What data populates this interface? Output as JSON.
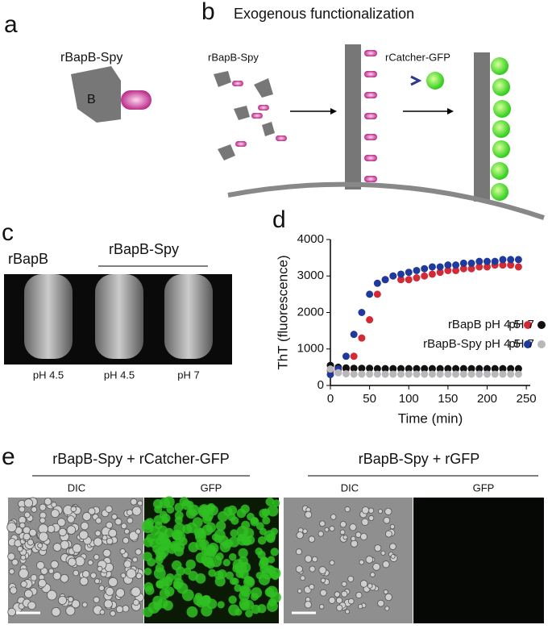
{
  "panels": {
    "a": {
      "letter": "a",
      "label": "rBapB-Spy",
      "domain": "B"
    },
    "b": {
      "letter": "b",
      "title": "Exogenous functionalization",
      "label_left": "rBapB-Spy",
      "label_right": "rCatcher-GFP"
    },
    "c": {
      "letter": "c",
      "group_1": "rBapB",
      "group_2": "rBapB-Spy",
      "tubes": [
        "pH 4.5",
        "pH 4.5",
        "pH 7"
      ]
    },
    "e": {
      "letter": "e",
      "left_title": "rBapB-Spy + rCatcher-GFP",
      "left_images": [
        "DIC",
        "GFP"
      ],
      "right_title": "rBapB-Spy + rGFP",
      "right_images": [
        "DIC",
        "GFP"
      ]
    }
  },
  "chart_data": {
    "type": "scatter",
    "letter": "d",
    "x_label": "Time (min)",
    "y_label": "ThT (fluorescence)",
    "x": [
      0,
      10,
      20,
      30,
      40,
      50,
      60,
      70,
      80,
      90,
      100,
      110,
      120,
      130,
      140,
      150,
      160,
      170,
      180,
      190,
      200,
      210,
      220,
      230,
      240
    ],
    "series": [
      {
        "name": "rBapB pH 4.5",
        "color": "#d42a35",
        "values": [
          400,
          350,
          450,
          800,
          1300,
          1800,
          2500,
          2900,
          3000,
          2900,
          2900,
          2950,
          3000,
          3050,
          3100,
          3150,
          3150,
          3200,
          3200,
          3250,
          3250,
          3300,
          3300,
          3300,
          3250
        ]
      },
      {
        "name": "pH 7",
        "color": "#111111",
        "values": [
          550,
          500,
          480,
          470,
          470,
          470,
          460,
          460,
          460,
          460,
          460,
          460,
          460,
          460,
          460,
          460,
          460,
          460,
          460,
          460,
          460,
          460,
          460,
          460,
          460
        ]
      },
      {
        "name": "rBapB-Spy pH 4.5",
        "color": "#1f3a9c",
        "values": [
          300,
          450,
          800,
          1400,
          2000,
          2500,
          2800,
          2900,
          3000,
          3050,
          3100,
          3150,
          3200,
          3250,
          3250,
          3300,
          3300,
          3350,
          3350,
          3400,
          3400,
          3400,
          3450,
          3450,
          3450
        ]
      },
      {
        "name": "pH 7",
        "color": "#b8b8bc",
        "values": [
          450,
          350,
          320,
          310,
          310,
          310,
          310,
          310,
          310,
          310,
          310,
          310,
          310,
          310,
          310,
          310,
          310,
          310,
          310,
          310,
          310,
          310,
          310,
          310,
          310
        ]
      }
    ],
    "xlim": [
      0,
      255
    ],
    "xticks": [
      0,
      50,
      100,
      150,
      200,
      250
    ],
    "ylim": [
      0,
      4000
    ],
    "yticks": [
      0,
      1000,
      2000,
      3000,
      4000
    ]
  }
}
